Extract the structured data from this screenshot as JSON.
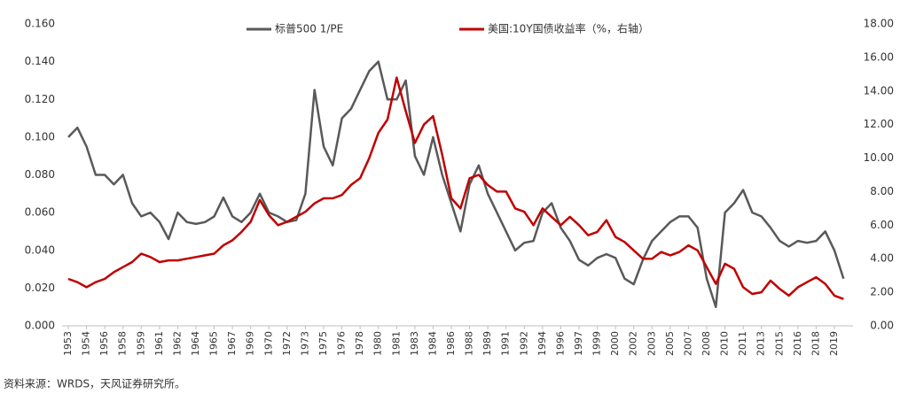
{
  "chart_data": {
    "type": "line",
    "categories": [
      "1953",
      null,
      "1954",
      null,
      "1956",
      null,
      "1958",
      null,
      "1959",
      null,
      "1961",
      null,
      "1962",
      null,
      "1964",
      null,
      "1965",
      null,
      "1967",
      null,
      "1969",
      null,
      "1970",
      null,
      "1972",
      null,
      "1973",
      null,
      "1975",
      null,
      "1976",
      null,
      "1978",
      null,
      "1980",
      null,
      "1981",
      null,
      "1983",
      null,
      "1984",
      null,
      "1986",
      null,
      "1988",
      null,
      "1989",
      null,
      "1991",
      null,
      "1992",
      null,
      "1994",
      null,
      "1996",
      null,
      "1997",
      null,
      "1999",
      null,
      "2000",
      null,
      "2002",
      null,
      "2003",
      null,
      "2005",
      null,
      "2007",
      null,
      "2008",
      null,
      "2010",
      null,
      "2011",
      null,
      "2013",
      null,
      "2015",
      null,
      "2016",
      null,
      "2018",
      null,
      "2019",
      null
    ],
    "series": [
      {
        "name": "标普500 1/PE",
        "color": "#595959",
        "axis": "y",
        "values": [
          0.1,
          0.105,
          0.095,
          0.08,
          0.08,
          0.075,
          0.08,
          0.065,
          0.058,
          0.06,
          0.055,
          0.046,
          0.06,
          0.055,
          0.054,
          0.055,
          0.058,
          0.068,
          0.058,
          0.055,
          0.06,
          0.07,
          0.06,
          0.058,
          0.055,
          0.056,
          0.07,
          0.125,
          0.095,
          0.085,
          0.11,
          0.115,
          0.125,
          0.135,
          0.14,
          0.12,
          0.12,
          0.13,
          0.09,
          0.08,
          0.1,
          0.08,
          0.065,
          0.05,
          0.075,
          0.085,
          0.07,
          0.06,
          0.05,
          0.04,
          0.044,
          0.045,
          0.06,
          0.065,
          0.052,
          0.045,
          0.035,
          0.032,
          0.036,
          0.038,
          0.036,
          0.025,
          0.022,
          0.035,
          0.045,
          0.05,
          0.055,
          0.058,
          0.058,
          0.052,
          0.025,
          0.01,
          0.06,
          0.065,
          0.072,
          0.06,
          0.058,
          0.052,
          0.045,
          0.042,
          0.045,
          0.044,
          0.045,
          0.05,
          0.04,
          0.025
        ]
      },
      {
        "name": "美国:10Y国债收益率（%，右轴）",
        "color": "#c00000",
        "axis": "y2",
        "values": [
          2.8,
          2.6,
          2.3,
          2.6,
          2.8,
          3.2,
          3.5,
          3.8,
          4.3,
          4.1,
          3.8,
          3.9,
          3.9,
          4.0,
          4.1,
          4.2,
          4.3,
          4.8,
          5.1,
          5.6,
          6.2,
          7.5,
          6.6,
          6.0,
          6.2,
          6.5,
          6.8,
          7.3,
          7.6,
          7.6,
          7.8,
          8.4,
          8.8,
          10.0,
          11.5,
          12.3,
          14.8,
          12.8,
          10.9,
          12.0,
          12.5,
          10.2,
          7.6,
          7.0,
          8.8,
          9.0,
          8.4,
          8.0,
          8.0,
          7.0,
          6.8,
          6.0,
          7.0,
          6.5,
          6.0,
          6.5,
          6.0,
          5.4,
          5.6,
          6.3,
          5.3,
          5.0,
          4.5,
          4.0,
          4.0,
          4.4,
          4.2,
          4.4,
          4.8,
          4.5,
          3.5,
          2.5,
          3.7,
          3.4,
          2.3,
          1.9,
          2.0,
          2.7,
          2.2,
          1.8,
          2.3,
          2.6,
          2.9,
          2.5,
          1.8,
          1.6
        ]
      }
    ],
    "ylim": [
      0,
      0.16
    ],
    "yticks": [
      {
        "value": 0,
        "label": "0.000"
      },
      {
        "value": 0.02,
        "label": "0.020"
      },
      {
        "value": 0.04,
        "label": "0.040"
      },
      {
        "value": 0.06,
        "label": "0.060"
      },
      {
        "value": 0.08,
        "label": "0.080"
      },
      {
        "value": 0.1,
        "label": "0.100"
      },
      {
        "value": 0.12,
        "label": "0.120"
      },
      {
        "value": 0.14,
        "label": "0.140"
      },
      {
        "value": 0.16,
        "label": "0.160"
      }
    ],
    "y2lim": [
      0,
      18
    ],
    "y2ticks": [
      {
        "value": 0,
        "label": "0.00"
      },
      {
        "value": 2,
        "label": "2.00"
      },
      {
        "value": 4,
        "label": "4.00"
      },
      {
        "value": 6,
        "label": "6.00"
      },
      {
        "value": 8,
        "label": "8.00"
      },
      {
        "value": 10,
        "label": "10.00"
      },
      {
        "value": 12,
        "label": "12.00"
      },
      {
        "value": 14,
        "label": "14.00"
      },
      {
        "value": 16,
        "label": "16.00"
      },
      {
        "value": 18,
        "label": "18.00"
      }
    ],
    "grid": false,
    "source": "资料来源：WRDS，天风证券研究所。"
  }
}
